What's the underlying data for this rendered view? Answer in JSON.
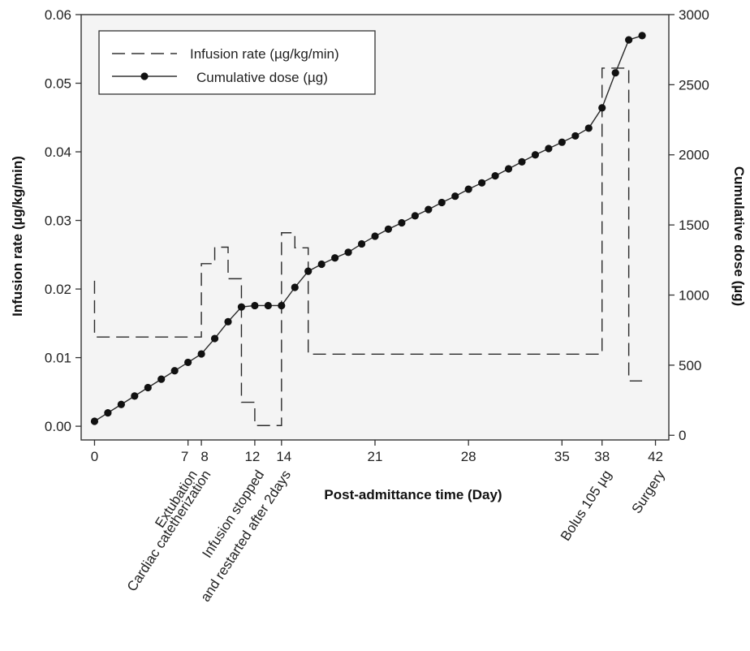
{
  "chart_data": {
    "type": "line",
    "xlabel": "Post-admittance time (Day)",
    "ylabel_left": "Infusion rate (µg/kg/min)",
    "ylabel_right": "Cumulative dose (µg)",
    "xlim": [
      -1,
      43
    ],
    "ylim_left": [
      -0.002,
      0.06
    ],
    "ylim_right": [
      -33.3,
      3000
    ],
    "x_ticks": [
      0,
      7,
      8,
      12,
      14,
      21,
      28,
      35,
      38,
      42
    ],
    "y_left_ticks": [
      0.0,
      0.01,
      0.02,
      0.03,
      0.04,
      0.05,
      0.06
    ],
    "y_left_tick_labels": [
      "0.00",
      "0.01",
      "0.02",
      "0.03",
      "0.04",
      "0.05",
      "0.06"
    ],
    "y_right_ticks": [
      0,
      500,
      1000,
      1500,
      2000,
      2500,
      3000
    ],
    "legend_position": "top-left",
    "background": "#f4f4f4",
    "series": [
      {
        "name": "Infusion rate (µg/kg/min)",
        "axis": "left",
        "style": "dashed-step",
        "x": [
          0,
          0,
          8,
          8,
          9,
          9,
          10,
          10,
          11,
          11,
          12,
          12,
          14,
          14,
          15,
          15,
          16,
          16,
          38,
          38,
          40,
          40,
          41
        ],
        "y": [
          0.0212,
          0.013,
          0.013,
          0.0237,
          0.0237,
          0.0261,
          0.0261,
          0.0215,
          0.0215,
          0.0035,
          0.0035,
          0.0001,
          0.0001,
          0.0282,
          0.0282,
          0.026,
          0.026,
          0.0105,
          0.0105,
          0.0522,
          0.0522,
          0.0066,
          0.0066
        ]
      },
      {
        "name": "Cumulative dose (µg)",
        "axis": "right",
        "style": "solid-markers",
        "x": [
          0,
          1,
          2,
          3,
          4,
          5,
          6,
          7,
          8,
          9,
          10,
          11,
          12,
          13,
          14,
          15,
          16,
          17,
          18,
          19,
          20,
          21,
          22,
          23,
          24,
          25,
          26,
          27,
          28,
          29,
          30,
          31,
          32,
          33,
          34,
          35,
          36,
          37,
          38,
          39,
          40,
          41
        ],
        "y": [
          100,
          160,
          220,
          280,
          340,
          400,
          460,
          520,
          580,
          690,
          810,
          915,
          925,
          925,
          925,
          1055,
          1170,
          1220,
          1265,
          1305,
          1365,
          1420,
          1470,
          1515,
          1565,
          1610,
          1660,
          1705,
          1755,
          1800,
          1850,
          1900,
          1950,
          2000,
          2045,
          2090,
          2135,
          2190,
          2335,
          2585,
          2820,
          2850
        ]
      }
    ],
    "annotations": [
      {
        "x": 7,
        "label": "Extubation"
      },
      {
        "x": 8,
        "label": "Cardiac catetherization"
      },
      {
        "x": 12,
        "label": "Infusion stopped"
      },
      {
        "x": 14,
        "label": "and restarted after 2days"
      },
      {
        "x": 38,
        "label": "Bolus 105 µg"
      },
      {
        "x": 42,
        "label": "Surgery"
      }
    ],
    "colors": {
      "line": "#2a2a2a",
      "plot_bg": "#f4f4f4",
      "frame": "#333333"
    }
  }
}
